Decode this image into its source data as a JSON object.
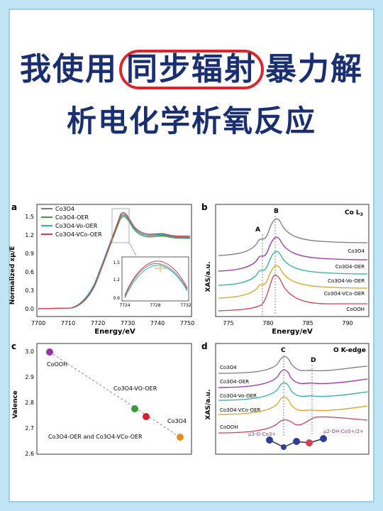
{
  "headline": {
    "line1_pre": "我使用",
    "line1_highlight": "同步辐射",
    "line1_post": "暴力解",
    "line2": "析电化学析氧反应"
  },
  "colors": {
    "background": "#bfe4f3",
    "title": "#1a2f72",
    "highlight_circle": "#e0242b",
    "Co3O4": "#7a7a7a",
    "Co3O4-OER": "#9b2fa8",
    "Co3O4-Vo-OER": "#2bb0a0",
    "Co3O4-VCo-OER": "#e0a020",
    "CoOOH": "#d64050"
  },
  "panels": {
    "a": {
      "label": "a",
      "ylabel": "Normalized xμ/E",
      "xlabel": "Energy/eV",
      "legend": [
        "Co3O4",
        "Co3O4-OER",
        "Co3O4-Vo-OER",
        "Co3O4-VCo-OER"
      ],
      "xticks": [
        "7700",
        "7710",
        "7720",
        "7730",
        "7740",
        "7750"
      ],
      "yticks": [
        "0.0",
        "0.3",
        "0.6",
        "0.9",
        "1.2",
        "1.5"
      ],
      "inset_xticks": [
        "7724",
        "7728",
        "7732"
      ],
      "inset_yticks": [
        "0.9",
        "1.2",
        "1.5"
      ]
    },
    "b": {
      "label": "b",
      "title": "Co L",
      "title_sub": "3",
      "ylabel": "XAS/a.u.",
      "xlabel": "Energy/eV",
      "peak_a": "A",
      "peak_b": "B",
      "series": [
        "Co3O4",
        "Co3O4-OER",
        "Co3O4-Vo-OER",
        "Co3O4-VCo-OER",
        "CoOOH"
      ],
      "xticks": [
        "775",
        "780",
        "785",
        "790"
      ]
    },
    "c": {
      "label": "c",
      "ylabel": "Valence",
      "yticks": [
        "3.0",
        "2.9",
        "2.8",
        "2.7",
        "2.6"
      ],
      "pt_cooh": "CoOOH",
      "pt_vo": "Co3O4-VO-OER",
      "pt_co3o4": "Co3O4",
      "pt_mixed": "Co3O4-OER and Co3O4-VCo-OER"
    },
    "d": {
      "label": "d",
      "title": "O K-edge",
      "ylabel": "XAS/a.u.",
      "peak_c": "C",
      "peak_d": "D",
      "series": [
        "Co3O4",
        "Co3O4-OER",
        "Co3O4-Vo-OER",
        "Co3O4-VCo-OER",
        "CoOOH"
      ],
      "annot_left": "μ3-O-Co3+",
      "annot_right": "μ2-OH-Co3+/2+"
    }
  }
}
